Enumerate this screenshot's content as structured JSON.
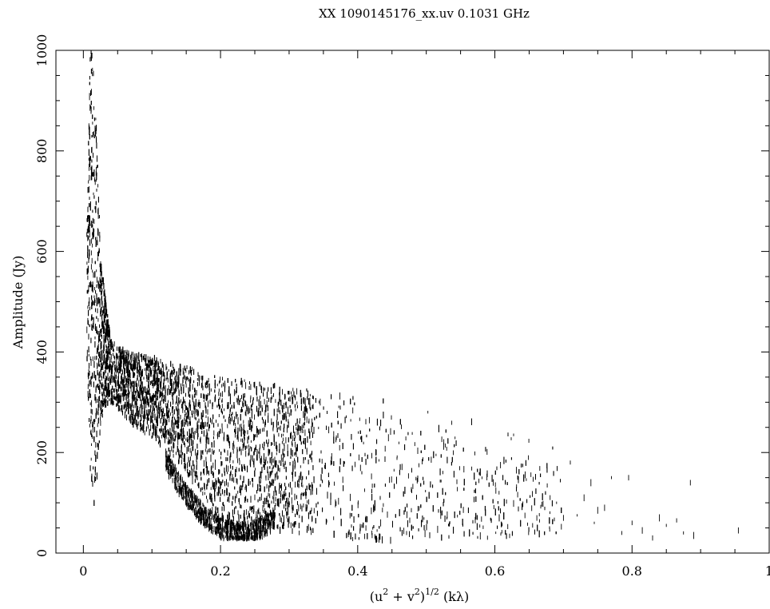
{
  "chart_data": {
    "type": "scatter",
    "title": "XX   1090145176_xx.uv 0.1031  GHz",
    "xlabel": {
      "open": "(u",
      "sq1": "2",
      "plus": " + v",
      "sq2": "2",
      "close": ")",
      "exp": "1/2",
      "unit": " (kλ)"
    },
    "ylabel": "Amplitude  (Jy)",
    "xlim": [
      -0.04,
      1.0
    ],
    "ylim": [
      0,
      1000
    ],
    "x_ticks": [
      0,
      0.2,
      0.4,
      0.6,
      0.8,
      1
    ],
    "x_tick_labels": [
      "0",
      "0.2",
      "0.4",
      "0.6",
      "0.8",
      "1"
    ],
    "y_ticks": [
      0,
      200,
      400,
      600,
      800,
      1000
    ],
    "y_tick_labels": [
      "0",
      "200",
      "400",
      "600",
      "800",
      "1000"
    ],
    "grid": false,
    "marker": "short vertical dashes",
    "color": "#000000",
    "envelope": [
      {
        "x": 0.005,
        "min": 380,
        "max": 640
      },
      {
        "x": 0.01,
        "min": 150,
        "max": 1000
      },
      {
        "x": 0.015,
        "min": 90,
        "max": 990
      },
      {
        "x": 0.02,
        "min": 150,
        "max": 820
      },
      {
        "x": 0.025,
        "min": 250,
        "max": 600
      },
      {
        "x": 0.03,
        "min": 290,
        "max": 530
      },
      {
        "x": 0.04,
        "min": 300,
        "max": 430
      },
      {
        "x": 0.05,
        "min": 290,
        "max": 410
      },
      {
        "x": 0.075,
        "min": 250,
        "max": 395
      },
      {
        "x": 0.1,
        "min": 230,
        "max": 390
      },
      {
        "x": 0.125,
        "min": 200,
        "max": 380
      },
      {
        "x": 0.15,
        "min": 160,
        "max": 370
      },
      {
        "x": 0.175,
        "min": 110,
        "max": 360
      },
      {
        "x": 0.2,
        "min": 60,
        "max": 350
      },
      {
        "x": 0.225,
        "min": 35,
        "max": 345
      },
      {
        "x": 0.25,
        "min": 40,
        "max": 340
      },
      {
        "x": 0.275,
        "min": 45,
        "max": 335
      },
      {
        "x": 0.3,
        "min": 40,
        "max": 330
      },
      {
        "x": 0.35,
        "min": 35,
        "max": 320
      },
      {
        "x": 0.4,
        "min": 25,
        "max": 315
      },
      {
        "x": 0.45,
        "min": 25,
        "max": 300
      },
      {
        "x": 0.5,
        "min": 30,
        "max": 285
      },
      {
        "x": 0.55,
        "min": 30,
        "max": 270
      },
      {
        "x": 0.6,
        "min": 30,
        "max": 250
      },
      {
        "x": 0.65,
        "min": 35,
        "max": 230
      },
      {
        "x": 0.7,
        "min": 40,
        "max": 200
      }
    ],
    "sparse_points": [
      {
        "x": 0.72,
        "y": 75
      },
      {
        "x": 0.74,
        "y": 140
      },
      {
        "x": 0.745,
        "y": 60
      },
      {
        "x": 0.76,
        "y": 90
      },
      {
        "x": 0.77,
        "y": 150
      },
      {
        "x": 0.785,
        "y": 40
      },
      {
        "x": 0.795,
        "y": 150
      },
      {
        "x": 0.8,
        "y": 60
      },
      {
        "x": 0.815,
        "y": 45
      },
      {
        "x": 0.83,
        "y": 30
      },
      {
        "x": 0.84,
        "y": 70
      },
      {
        "x": 0.85,
        "y": 55
      },
      {
        "x": 0.865,
        "y": 65
      },
      {
        "x": 0.875,
        "y": 40
      },
      {
        "x": 0.885,
        "y": 140
      },
      {
        "x": 0.89,
        "y": 35
      },
      {
        "x": 0.955,
        "y": 45
      },
      {
        "x": 0.73,
        "y": 110
      },
      {
        "x": 0.75,
        "y": 85
      },
      {
        "x": 0.71,
        "y": 180
      },
      {
        "x": 0.69,
        "y": 100
      },
      {
        "x": 0.7,
        "y": 70
      }
    ]
  }
}
